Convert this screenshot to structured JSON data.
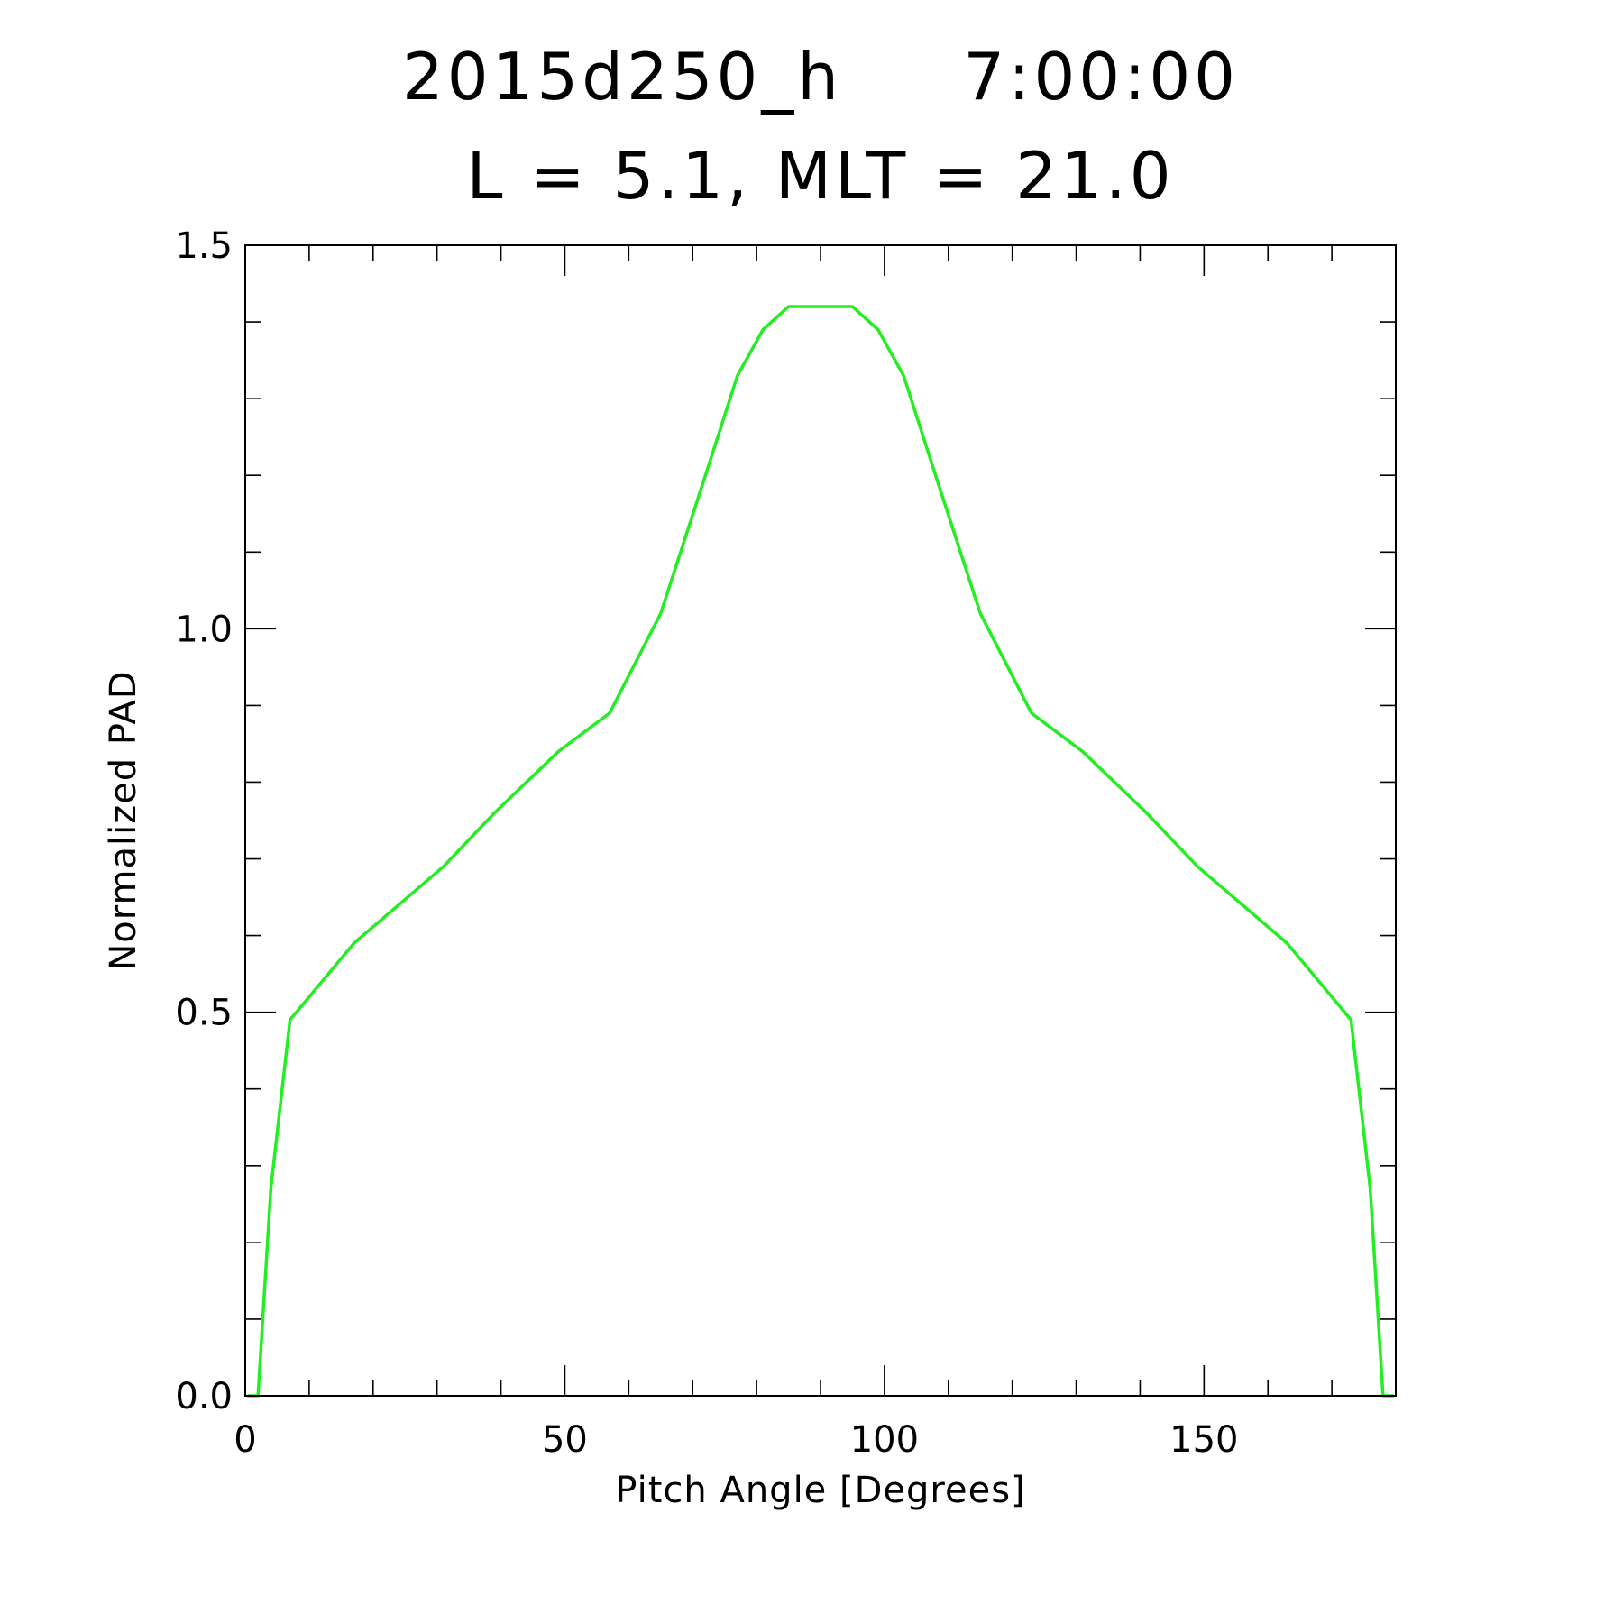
{
  "chart_data": {
    "type": "line",
    "title_line1": "2015d250_h     7:00:00",
    "title_line2": "L = 5.1, MLT = 21.0",
    "xlabel": "Pitch Angle [Degrees]",
    "ylabel": "Normalized PAD",
    "xlim": [
      0,
      180
    ],
    "ylim": [
      0,
      1.5
    ],
    "x_major_ticks": [
      0,
      50,
      100,
      150
    ],
    "x_tick_labels": [
      "0",
      "50",
      "100",
      "150"
    ],
    "x_minor_step": 10,
    "y_major_ticks": [
      0.0,
      0.5,
      1.0,
      1.5
    ],
    "y_tick_labels": [
      "0.0",
      "0.5",
      "1.0",
      "1.5"
    ],
    "y_minor_step": 0.1,
    "grid": false,
    "line_color": "#22ee22",
    "series": [
      {
        "x": [
          0.5,
          2,
          4,
          7,
          12,
          17,
          24,
          31,
          39,
          49,
          57,
          65,
          72,
          77,
          81,
          85,
          90,
          95,
          99,
          103,
          108,
          115,
          123,
          131,
          141,
          149,
          156,
          163,
          168,
          173,
          176,
          178,
          179.5
        ],
        "values": [
          0.0,
          0.0,
          0.27,
          0.49,
          0.54,
          0.59,
          0.64,
          0.69,
          0.76,
          0.84,
          0.89,
          1.02,
          1.2,
          1.33,
          1.39,
          1.42,
          1.42,
          1.42,
          1.39,
          1.33,
          1.2,
          1.02,
          0.89,
          0.84,
          0.76,
          0.69,
          0.64,
          0.59,
          0.54,
          0.49,
          0.27,
          0.0,
          0.0
        ]
      }
    ]
  }
}
